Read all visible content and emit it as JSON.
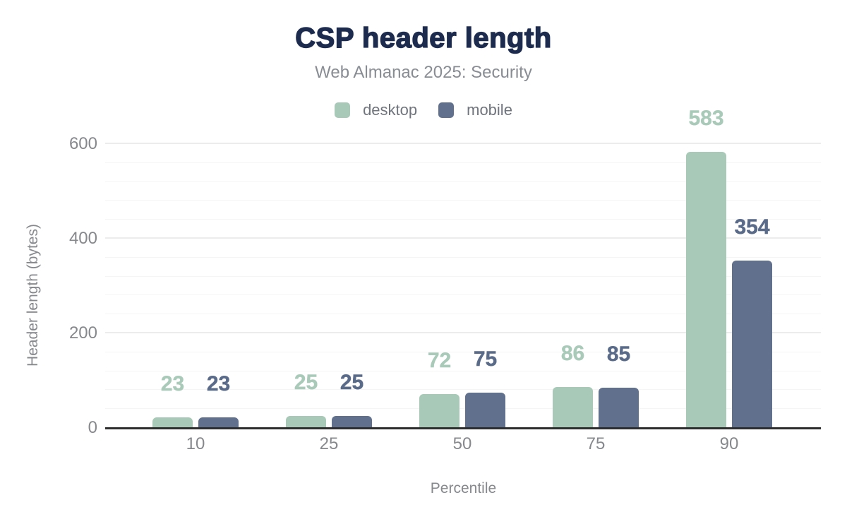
{
  "chart_data": {
    "type": "bar",
    "title": "CSP header length",
    "subtitle": "Web Almanac 2025: Security",
    "categories": [
      "10",
      "25",
      "50",
      "75",
      "90"
    ],
    "series": [
      {
        "name": "desktop",
        "color": "#a8c9b7",
        "label_color": "#a9cab9",
        "values": [
          23,
          25,
          72,
          86,
          583
        ]
      },
      {
        "name": "mobile",
        "color": "#60708d",
        "label_color": "#5a6b89",
        "values": [
          23,
          25,
          75,
          85,
          354
        ]
      }
    ],
    "xlabel": "Percentile",
    "ylabel": "Header length (bytes)",
    "ylim": [
      0,
      600
    ],
    "yticks": [
      0,
      200,
      400,
      600
    ],
    "minor_gridline_step": 40,
    "major_gridline_step": 200,
    "grid": "on",
    "legend_position": "top",
    "bar_value_labels": true
  },
  "colors": {
    "background": "#ffffff",
    "title": "#1c2b4e",
    "subtitle": "#888c93",
    "legend_text": "#6f747d",
    "tick_text": "#86888c",
    "axis_line": "#2e2e2e",
    "grid_major": "#ececec",
    "grid_minor": "#f5f5f5"
  }
}
